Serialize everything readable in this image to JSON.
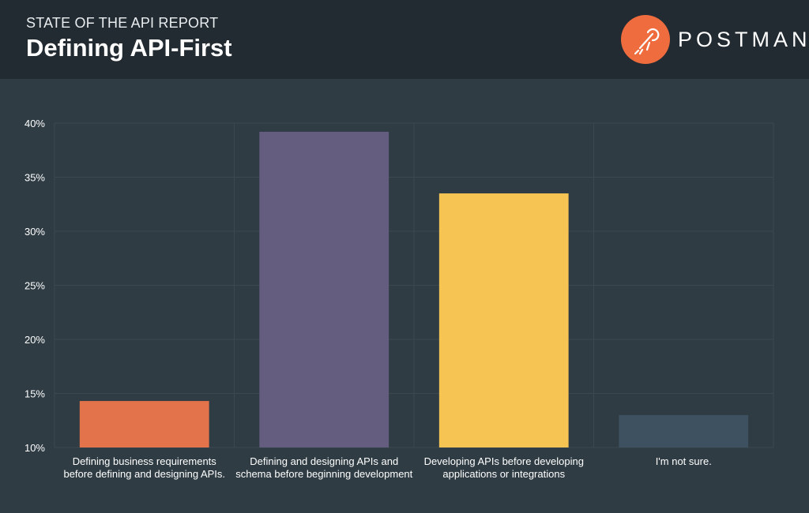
{
  "header": {
    "kicker": "STATE OF THE API REPORT",
    "title": "Defining API-First",
    "brand": "POSTMAN"
  },
  "colors": {
    "background": "#2f3c44",
    "header_background": "#222b31",
    "brand_orange": "#ef6c3f"
  },
  "chart_data": {
    "type": "bar",
    "title": "",
    "xlabel": "",
    "ylabel": "",
    "y_unit": "%",
    "ylim": [
      10,
      40
    ],
    "yticks": [
      10,
      15,
      20,
      25,
      30,
      35,
      40
    ],
    "grid": true,
    "categories": [
      [
        "Defining business requirements",
        "before defining and designing APIs."
      ],
      [
        "Defining and designing APIs and",
        "schema before beginning development"
      ],
      [
        "Developing APIs before developing",
        "applications or integrations"
      ],
      [
        "I'm not sure."
      ]
    ],
    "values": [
      14.3,
      39.2,
      33.5,
      13.0
    ],
    "bar_colors": [
      "#e2734b",
      "#655d7f",
      "#f5c453",
      "#3e5161"
    ]
  }
}
